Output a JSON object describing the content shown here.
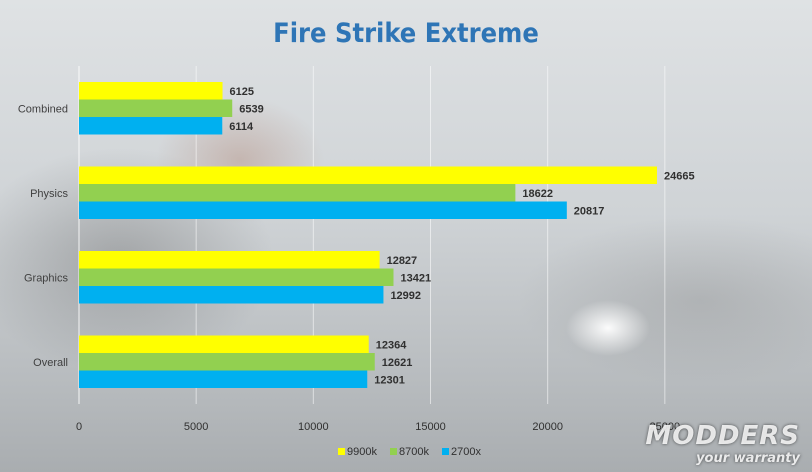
{
  "chart_data": {
    "type": "bar",
    "orientation": "horizontal",
    "title": "Fire Strike Extreme",
    "categories": [
      "Combined",
      "Physics",
      "Graphics",
      "Overall"
    ],
    "series": [
      {
        "name": "9900k",
        "color": "#ffff00",
        "values": [
          6125,
          24665,
          12827,
          12364
        ]
      },
      {
        "name": "8700k",
        "color": "#92d050",
        "values": [
          6539,
          18622,
          13421,
          12621
        ]
      },
      {
        "name": "2700x",
        "color": "#00b0f0",
        "values": [
          6114,
          20817,
          12992,
          12301
        ]
      }
    ],
    "xticks": [
      "0",
      "5000",
      "10000",
      "15000",
      "20000",
      "25000"
    ],
    "xlim": [
      0,
      30000
    ],
    "legend": "bottom",
    "grid": true
  },
  "watermark": {
    "line1": "MODDERS",
    "line2": "your warranty"
  }
}
